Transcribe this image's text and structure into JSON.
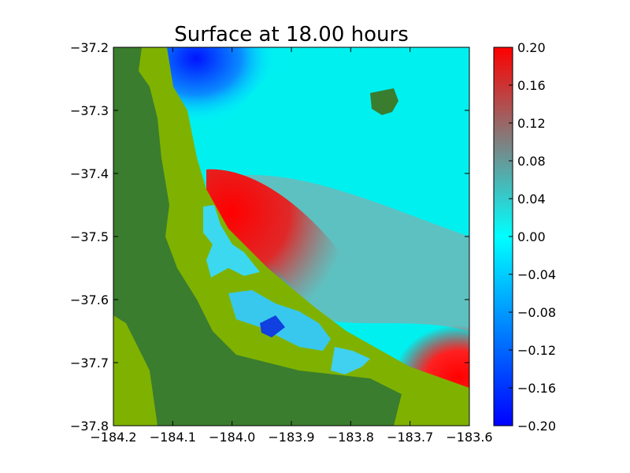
{
  "chart_data": {
    "type": "heatmap",
    "title": "Surface at 18.00 hours",
    "xlabel": "",
    "ylabel": "",
    "xlim": [
      -184.2,
      -183.6
    ],
    "ylim": [
      -37.8,
      -37.2
    ],
    "x_ticks": [
      -184.2,
      -184.1,
      -184.0,
      -183.9,
      -183.8,
      -183.7,
      -183.6
    ],
    "x_tick_labels": [
      "−184.2",
      "−184.1",
      "−184.0",
      "−183.9",
      "−183.8",
      "−183.7",
      "−183.6"
    ],
    "y_ticks": [
      -37.2,
      -37.3,
      -37.4,
      -37.5,
      -37.6,
      -37.7,
      -37.8
    ],
    "y_tick_labels": [
      "−37.2",
      "−37.3",
      "−37.4",
      "−37.5",
      "−37.6",
      "−37.7",
      "−37.8"
    ],
    "colorbar": {
      "range": [
        -0.2,
        0.2
      ],
      "ticks": [
        0.2,
        0.16,
        0.12,
        0.08,
        0.04,
        0.0,
        -0.04,
        -0.08,
        -0.12,
        -0.16,
        -0.2
      ],
      "tick_labels": [
        "0.20",
        "0.16",
        "0.12",
        "0.08",
        "0.04",
        "0.00",
        "−0.04",
        "−0.08",
        "−0.12",
        "−0.16",
        "−0.20"
      ],
      "colors": [
        "#0000ff",
        "#00ffff",
        "#808080",
        "#ff0000"
      ]
    },
    "land_colors": [
      "#3a7d2e",
      "#7fb200"
    ],
    "grid": false
  }
}
